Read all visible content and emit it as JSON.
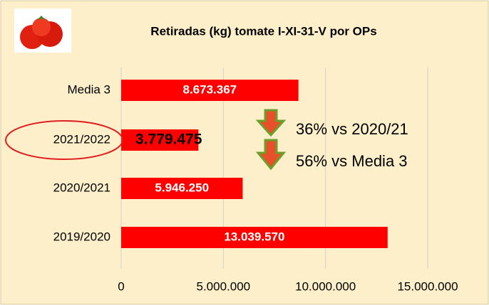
{
  "chart_data": {
    "type": "bar",
    "orientation": "horizontal",
    "title": "Retiradas (kg) tomate I-XI-31-V por OPs",
    "categories": [
      "Media 3",
      "2021/2022",
      "2020/2021",
      "2019/2020"
    ],
    "values": [
      8673367,
      3779475,
      5946250,
      13039570
    ],
    "value_labels": [
      "8.673.367",
      "3.779.475",
      "5.946.250",
      "13.039.570"
    ],
    "color": "#ff0000",
    "xlim": [
      0,
      15000000
    ],
    "xticks": [
      0,
      {
        "value": 5000000,
        "label": "5.000.000"
      },
      {
        "value": 10000000,
        "label": "10.000.000"
      },
      {
        "value": 15000000,
        "label": "15.000.000"
      }
    ],
    "grid": true,
    "annotations": [
      "36% vs 2020/21",
      "56% vs Media 3"
    ]
  }
}
